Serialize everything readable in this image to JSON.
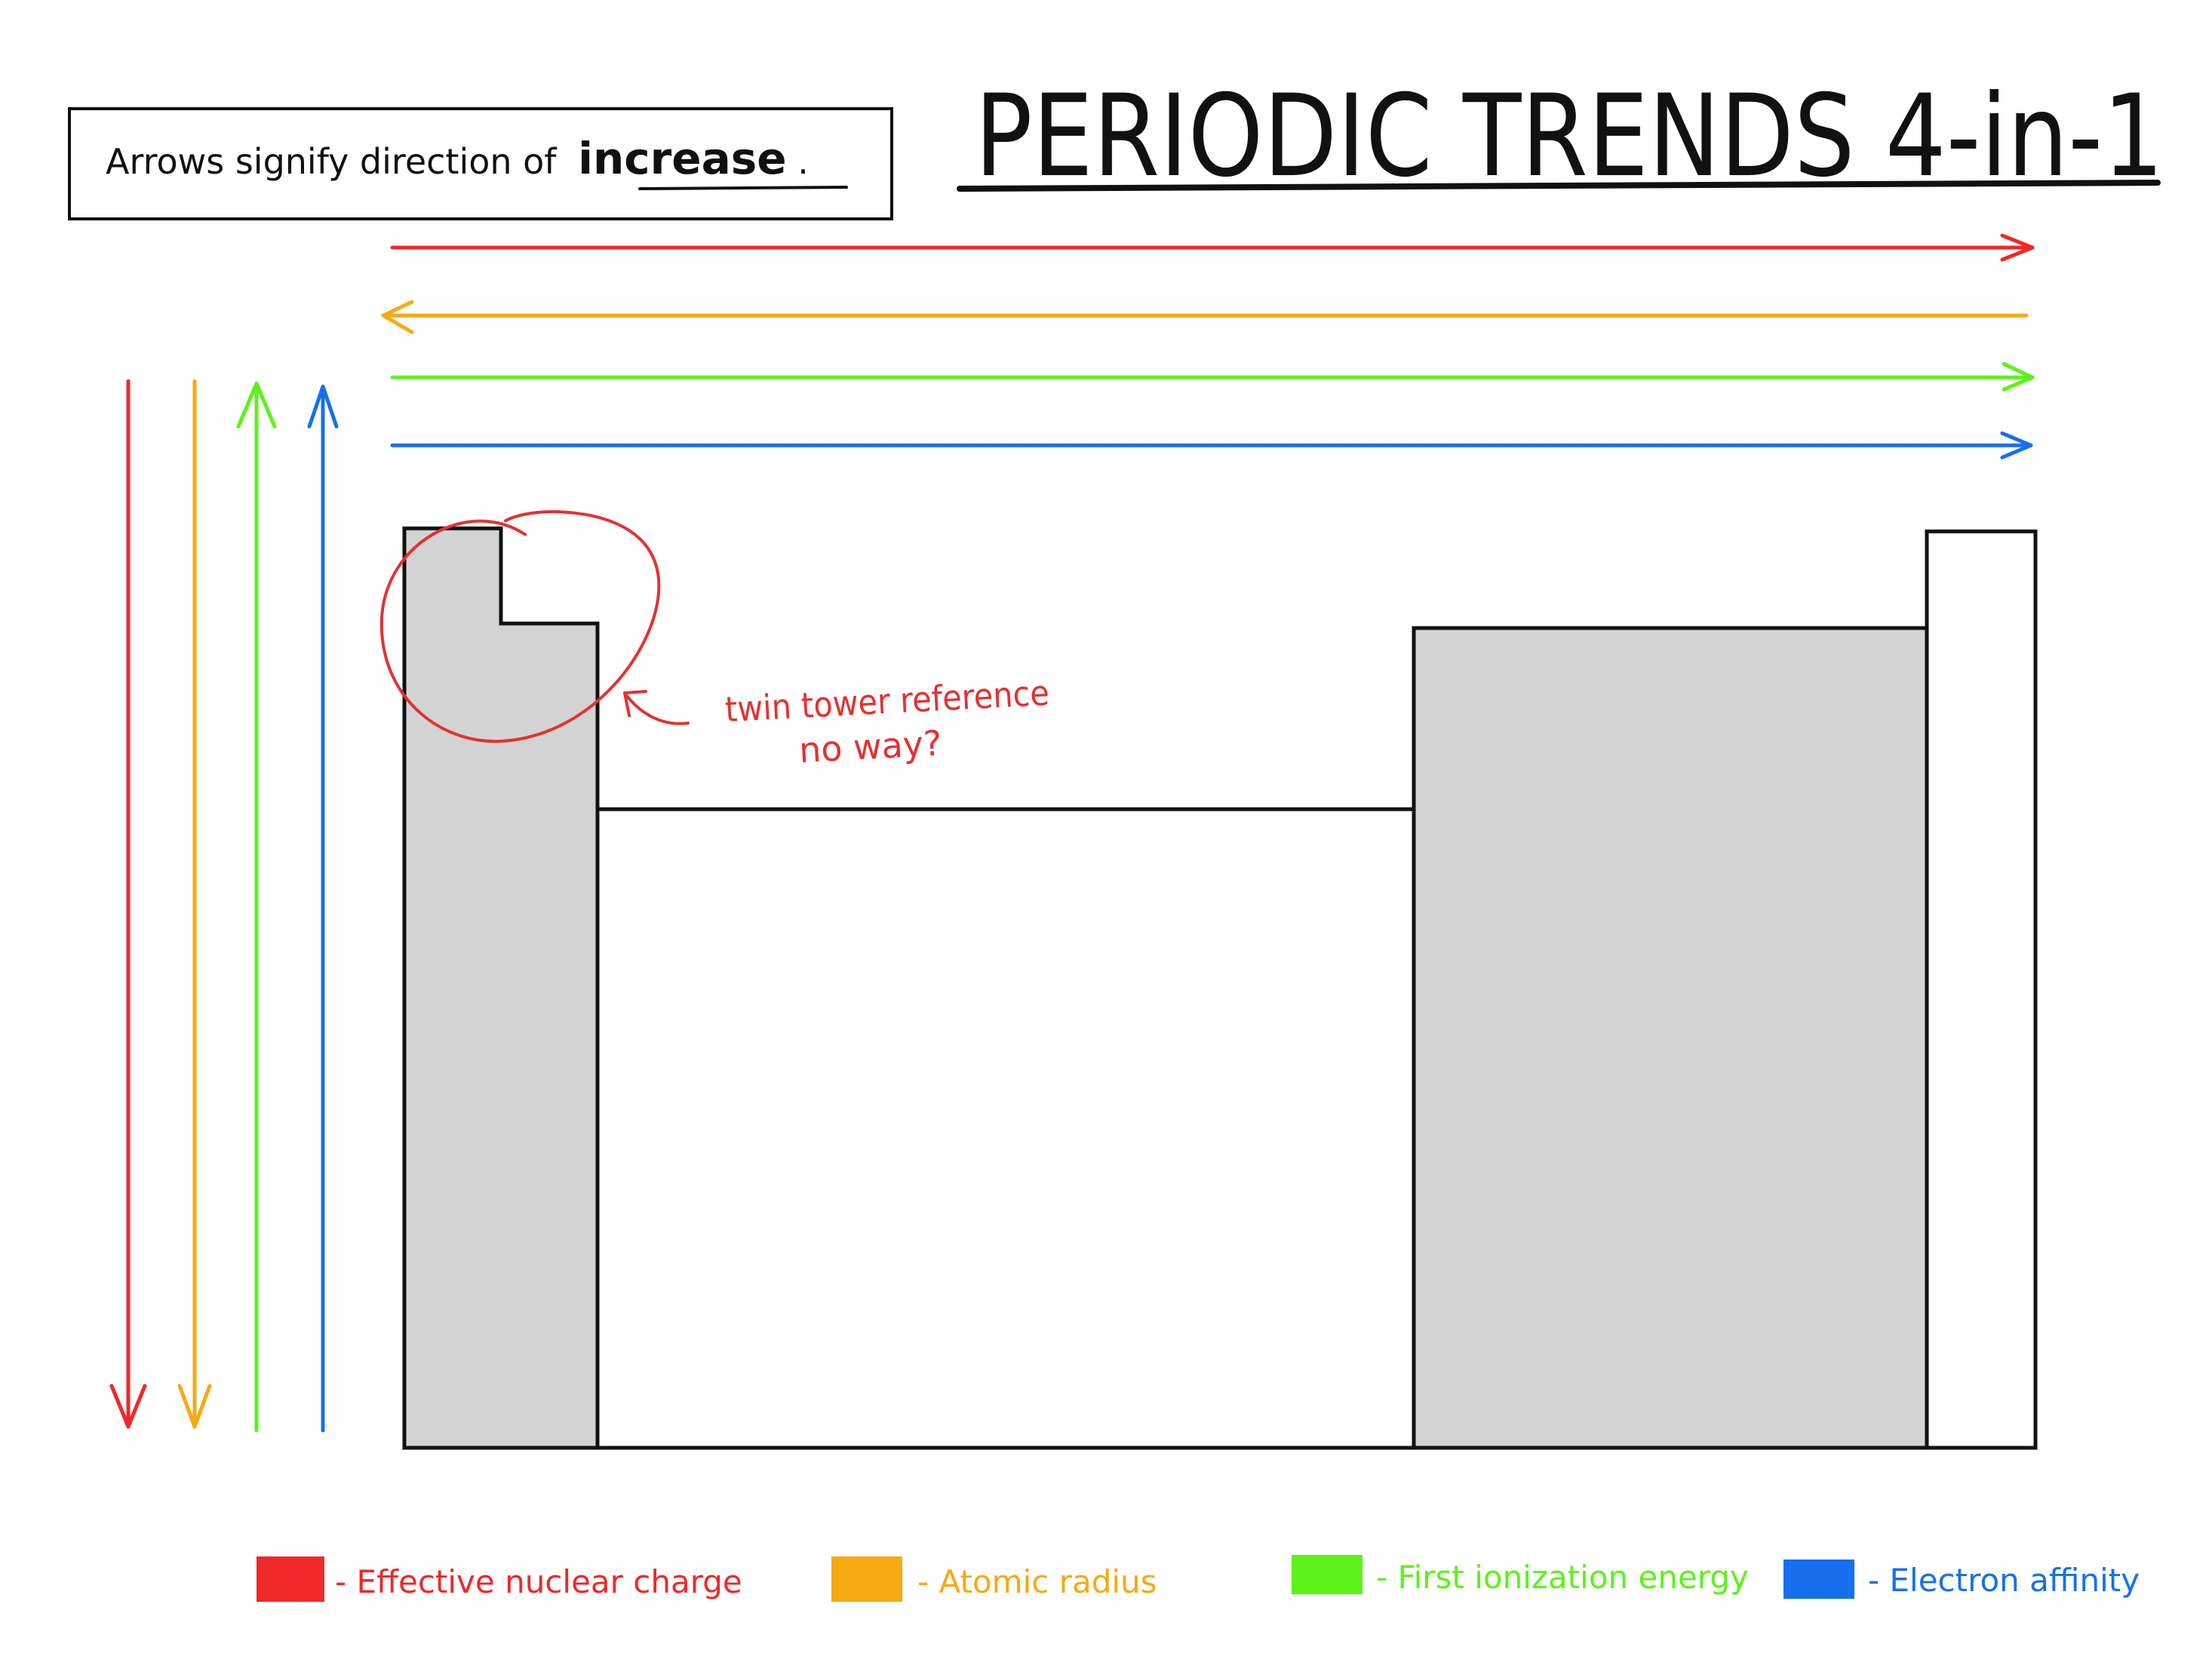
{
  "title": "PERIODIC TRENDS 4-in-1",
  "note": {
    "prefix": "Arrows signify direction of",
    "emphasis": "increase",
    "suffix": "."
  },
  "annotation": {
    "line1": "twin tower reference",
    "line2": "no way?"
  },
  "trends": [
    {
      "id": "effective-nuclear-charge",
      "label": "- Effective nuclear charge",
      "color": "#f02828",
      "horizontal": "left-to-right",
      "vertical": "top-to-bottom"
    },
    {
      "id": "atomic-radius",
      "label": "- Atomic radius",
      "color": "#f6aa12",
      "horizontal": "right-to-left",
      "vertical": "top-to-bottom"
    },
    {
      "id": "first-ionization-energy",
      "label": "- First ionization energy",
      "color": "#5cf21a",
      "horizontal": "left-to-right",
      "vertical": "bottom-to-top"
    },
    {
      "id": "electron-affinity",
      "label": "- Electron affinity",
      "color": "#1670ec",
      "horizontal": "left-to-right",
      "vertical": "bottom-to-top"
    }
  ],
  "colors": {
    "block_fill": "#d3d3d3",
    "outline": "#111111",
    "annotation": "#e63030"
  }
}
